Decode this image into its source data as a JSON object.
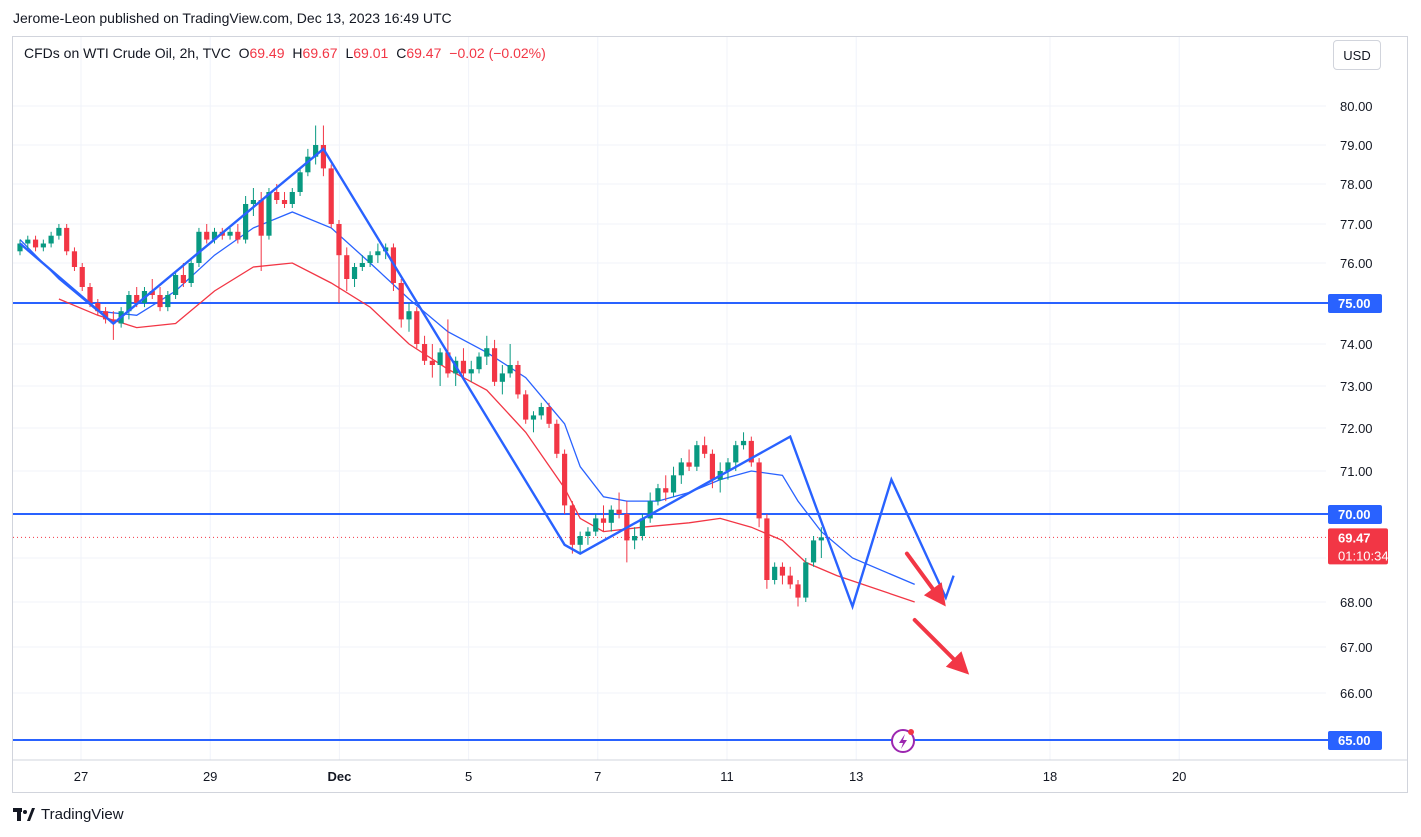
{
  "header": {
    "publisher": "Jerome-Leon published on TradingView.com, Dec 13, 2023 16:49 UTC"
  },
  "legend": {
    "symbol": "CFDs on WTI Crude Oil, 2h, TVC",
    "open_label": "O",
    "open": "69.49",
    "high_label": "H",
    "high": "69.67",
    "low_label": "L",
    "low": "69.01",
    "close_label": "C",
    "close": "69.47",
    "change": "−0.02 (−0.02%)"
  },
  "currency_button": "USD",
  "footer": {
    "brand": "TradingView"
  },
  "colors": {
    "up": "#089981",
    "down": "#f23645",
    "line_blue": "#2962ff",
    "ma_fast": "#2962ff",
    "ma_slow": "#f23645",
    "badge_blue": "#2962ff",
    "badge_red": "#f23645",
    "arrow": "#f23645",
    "grid": "#f0f3fa"
  },
  "chart_data": {
    "type": "candlestick",
    "y_ticks": [
      "80.00",
      "79.00",
      "78.00",
      "77.00",
      "76.00",
      "74.00",
      "73.00",
      "72.00",
      "71.00",
      "68.00",
      "67.00",
      "66.00"
    ],
    "y_tick_values": [
      80,
      79,
      78,
      77,
      76,
      74,
      73,
      72,
      71,
      68,
      67,
      66
    ],
    "x_ticks": [
      {
        "label": "27",
        "day": 0
      },
      {
        "label": "29",
        "day": 2
      },
      {
        "label": "Dec",
        "day": 4
      },
      {
        "label": "5",
        "day": 6
      },
      {
        "label": "7",
        "day": 8
      },
      {
        "label": "11",
        "day": 10
      },
      {
        "label": "13",
        "day": 12
      },
      {
        "label": "18",
        "day": 15
      },
      {
        "label": "20",
        "day": 17
      }
    ],
    "horizontal_levels": [
      {
        "value": 75.0,
        "label": "75.00"
      },
      {
        "value": 70.0,
        "label": "70.00"
      },
      {
        "value": 65.0,
        "label": "65.00"
      }
    ],
    "last_price": {
      "value": 69.47,
      "label": "69.47",
      "countdown": "01:10:34"
    },
    "candles": [
      [
        76.3,
        76.6,
        76.2,
        76.5
      ],
      [
        76.5,
        76.7,
        76.3,
        76.6
      ],
      [
        76.6,
        76.7,
        76.3,
        76.4
      ],
      [
        76.4,
        76.6,
        76.3,
        76.5
      ],
      [
        76.5,
        76.8,
        76.4,
        76.7
      ],
      [
        76.7,
        77.0,
        76.6,
        76.9
      ],
      [
        76.9,
        77.0,
        76.2,
        76.3
      ],
      [
        76.3,
        76.4,
        75.8,
        75.9
      ],
      [
        75.9,
        76.0,
        75.3,
        75.4
      ],
      [
        75.4,
        75.5,
        74.9,
        75.0
      ],
      [
        75.0,
        75.1,
        74.7,
        74.8
      ],
      [
        74.8,
        74.9,
        74.5,
        74.6
      ],
      [
        74.6,
        74.8,
        74.1,
        74.5
      ],
      [
        74.5,
        74.9,
        74.4,
        74.8
      ],
      [
        74.8,
        75.3,
        74.6,
        75.2
      ],
      [
        75.2,
        75.4,
        74.9,
        75.0
      ],
      [
        75.0,
        75.4,
        74.9,
        75.3
      ],
      [
        75.3,
        75.6,
        75.1,
        75.2
      ],
      [
        75.2,
        75.4,
        74.8,
        74.9
      ],
      [
        74.9,
        75.3,
        74.8,
        75.2
      ],
      [
        75.2,
        75.8,
        75.1,
        75.7
      ],
      [
        75.7,
        76.0,
        75.4,
        75.5
      ],
      [
        75.5,
        76.1,
        75.4,
        76.0
      ],
      [
        76.0,
        76.9,
        75.9,
        76.8
      ],
      [
        76.8,
        77.0,
        76.5,
        76.6
      ],
      [
        76.6,
        76.9,
        76.5,
        76.8
      ],
      [
        76.8,
        76.9,
        76.6,
        76.7
      ],
      [
        76.7,
        76.9,
        76.6,
        76.8
      ],
      [
        76.8,
        77.0,
        76.5,
        76.6
      ],
      [
        76.6,
        77.7,
        76.5,
        77.5
      ],
      [
        77.5,
        77.9,
        77.2,
        77.6
      ],
      [
        77.6,
        77.8,
        75.8,
        76.7
      ],
      [
        76.7,
        77.9,
        76.6,
        77.8
      ],
      [
        77.8,
        78.0,
        77.5,
        77.6
      ],
      [
        77.6,
        77.8,
        77.4,
        77.5
      ],
      [
        77.5,
        77.9,
        77.4,
        77.8
      ],
      [
        77.8,
        78.4,
        77.7,
        78.3
      ],
      [
        78.3,
        78.9,
        78.2,
        78.7
      ],
      [
        78.7,
        79.5,
        78.5,
        79.0
      ],
      [
        79.0,
        79.5,
        78.2,
        78.4
      ],
      [
        78.4,
        78.5,
        76.9,
        77.0
      ],
      [
        77.0,
        77.1,
        75.0,
        76.2
      ],
      [
        76.2,
        76.4,
        75.3,
        75.6
      ],
      [
        75.6,
        76.0,
        75.4,
        75.9
      ],
      [
        75.9,
        76.2,
        75.8,
        76.0
      ],
      [
        76.0,
        76.3,
        75.9,
        76.2
      ],
      [
        76.2,
        76.5,
        76.0,
        76.3
      ],
      [
        76.3,
        76.5,
        76.1,
        76.4
      ],
      [
        76.4,
        76.5,
        75.3,
        75.5
      ],
      [
        75.5,
        75.6,
        74.4,
        74.6
      ],
      [
        74.6,
        75.0,
        74.3,
        74.8
      ],
      [
        74.8,
        74.9,
        73.9,
        74.0
      ],
      [
        74.0,
        74.2,
        73.5,
        73.6
      ],
      [
        73.6,
        74.0,
        73.2,
        73.5
      ],
      [
        73.5,
        73.9,
        73.0,
        73.8
      ],
      [
        73.8,
        74.6,
        73.2,
        73.3
      ],
      [
        73.3,
        73.7,
        73.0,
        73.6
      ],
      [
        73.6,
        73.9,
        73.2,
        73.3
      ],
      [
        73.3,
        73.6,
        73.1,
        73.4
      ],
      [
        73.4,
        73.8,
        73.3,
        73.7
      ],
      [
        73.7,
        74.2,
        73.5,
        73.9
      ],
      [
        73.9,
        74.1,
        73.0,
        73.1
      ],
      [
        73.1,
        73.5,
        72.8,
        73.3
      ],
      [
        73.3,
        74.0,
        73.2,
        73.5
      ],
      [
        73.5,
        73.6,
        72.7,
        72.8
      ],
      [
        72.8,
        72.9,
        72.1,
        72.2
      ],
      [
        72.2,
        72.4,
        71.9,
        72.3
      ],
      [
        72.3,
        72.6,
        72.2,
        72.5
      ],
      [
        72.5,
        72.6,
        72.0,
        72.1
      ],
      [
        72.1,
        72.2,
        71.3,
        71.4
      ],
      [
        71.4,
        71.5,
        70.0,
        70.2
      ],
      [
        70.2,
        70.3,
        69.1,
        69.3
      ],
      [
        69.3,
        69.6,
        69.1,
        69.5
      ],
      [
        69.5,
        69.7,
        69.3,
        69.6
      ],
      [
        69.6,
        70.0,
        69.5,
        69.9
      ],
      [
        69.9,
        70.2,
        69.6,
        69.8
      ],
      [
        69.8,
        70.2,
        69.6,
        70.1
      ],
      [
        70.1,
        70.5,
        69.9,
        70.0
      ],
      [
        70.0,
        70.3,
        68.9,
        69.4
      ],
      [
        69.4,
        69.7,
        69.2,
        69.5
      ],
      [
        69.5,
        70.0,
        69.4,
        69.9
      ],
      [
        69.9,
        70.5,
        69.8,
        70.3
      ],
      [
        70.3,
        70.7,
        70.2,
        70.6
      ],
      [
        70.6,
        70.9,
        70.3,
        70.5
      ],
      [
        70.5,
        71.1,
        70.4,
        70.9
      ],
      [
        70.9,
        71.3,
        70.7,
        71.2
      ],
      [
        71.2,
        71.5,
        71.0,
        71.1
      ],
      [
        71.1,
        71.7,
        71.0,
        71.6
      ],
      [
        71.6,
        71.8,
        71.3,
        71.4
      ],
      [
        71.4,
        71.5,
        70.6,
        70.8
      ],
      [
        70.8,
        71.2,
        70.5,
        71.0
      ],
      [
        71.0,
        71.3,
        70.8,
        71.2
      ],
      [
        71.2,
        71.7,
        71.0,
        71.6
      ],
      [
        71.6,
        71.9,
        71.5,
        71.7
      ],
      [
        71.7,
        71.8,
        71.1,
        71.2
      ],
      [
        71.2,
        71.3,
        69.7,
        69.9
      ],
      [
        69.9,
        70.0,
        68.3,
        68.5
      ],
      [
        68.5,
        68.9,
        68.4,
        68.8
      ],
      [
        68.8,
        68.9,
        68.4,
        68.6
      ],
      [
        68.6,
        68.8,
        68.3,
        68.4
      ],
      [
        68.4,
        68.5,
        67.9,
        68.1
      ],
      [
        68.1,
        69.0,
        68.0,
        68.9
      ],
      [
        68.9,
        69.5,
        68.8,
        69.4
      ],
      [
        69.4,
        69.7,
        69.0,
        69.47
      ]
    ],
    "ma_fast": [
      [
        0,
        76.6
      ],
      [
        5,
        75.6
      ],
      [
        10,
        74.8
      ],
      [
        15,
        74.7
      ],
      [
        20,
        75.3
      ],
      [
        25,
        76.2
      ],
      [
        30,
        76.9
      ],
      [
        35,
        77.3
      ],
      [
        40,
        76.9
      ],
      [
        45,
        76.0
      ],
      [
        50,
        75.1
      ],
      [
        55,
        74.3
      ],
      [
        60,
        73.8
      ],
      [
        65,
        73.2
      ],
      [
        70,
        72.1
      ],
      [
        72,
        71.1
      ],
      [
        75,
        70.4
      ],
      [
        78,
        70.3
      ],
      [
        82,
        70.3
      ],
      [
        86,
        70.5
      ],
      [
        90,
        70.8
      ],
      [
        94,
        71.0
      ],
      [
        98,
        70.9
      ],
      [
        100,
        70.3
      ],
      [
        103,
        69.6
      ],
      [
        107,
        69.0
      ],
      [
        115,
        68.4
      ]
    ],
    "ma_slow": [
      [
        5,
        75.1
      ],
      [
        10,
        74.7
      ],
      [
        15,
        74.4
      ],
      [
        20,
        74.5
      ],
      [
        25,
        75.3
      ],
      [
        30,
        75.9
      ],
      [
        35,
        76.0
      ],
      [
        40,
        75.5
      ],
      [
        45,
        74.9
      ],
      [
        50,
        74.0
      ],
      [
        55,
        73.4
      ],
      [
        60,
        72.9
      ],
      [
        65,
        71.9
      ],
      [
        70,
        70.6
      ],
      [
        72,
        69.9
      ],
      [
        75,
        69.6
      ],
      [
        80,
        69.7
      ],
      [
        86,
        69.8
      ],
      [
        90,
        69.9
      ],
      [
        94,
        69.7
      ],
      [
        98,
        69.4
      ],
      [
        101,
        68.9
      ],
      [
        105,
        68.6
      ],
      [
        115,
        68.0
      ]
    ],
    "trend_lines": [
      [
        [
          0,
          76.5
        ],
        [
          12,
          74.5
        ],
        [
          39,
          78.9
        ],
        [
          70,
          69.3
        ],
        [
          72,
          69.1
        ],
        [
          99,
          71.8
        ],
        [
          107,
          67.9
        ],
        [
          112,
          70.8
        ],
        [
          119,
          68.1
        ],
        [
          120,
          68.6
        ]
      ]
    ],
    "arrows": [
      {
        "from": [
          114,
          69.1
        ],
        "to": [
          119,
          67.9
        ]
      },
      {
        "from": [
          115,
          67.6
        ],
        "to": [
          122,
          66.4
        ]
      }
    ]
  }
}
